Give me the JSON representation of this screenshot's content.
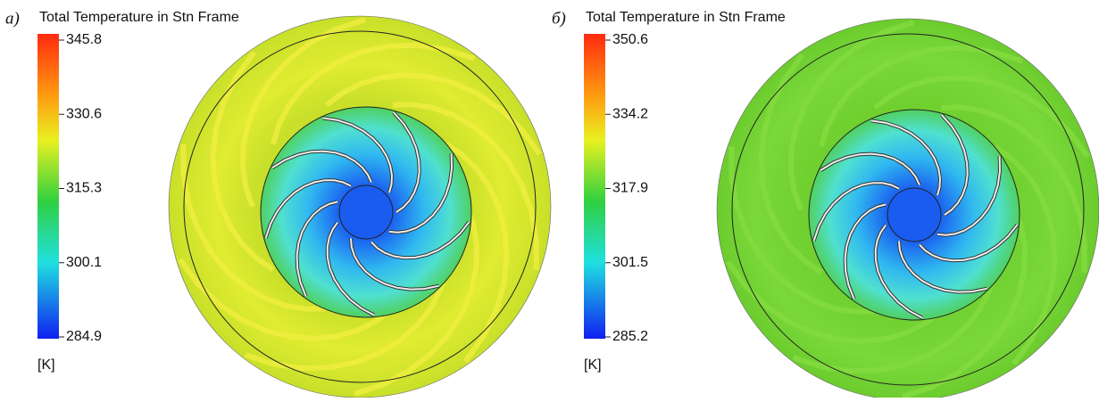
{
  "panels": [
    {
      "label": "а)",
      "title": "Total Temperature in Stn Frame",
      "ticks": [
        345.8,
        330.6,
        315.3,
        300.1,
        284.9
      ],
      "unit": "[K]"
    },
    {
      "label": "б)",
      "title": "Total Temperature in Stn Frame",
      "ticks": [
        350.6,
        334.2,
        317.9,
        301.5,
        285.2
      ],
      "unit": "[K]"
    }
  ]
}
